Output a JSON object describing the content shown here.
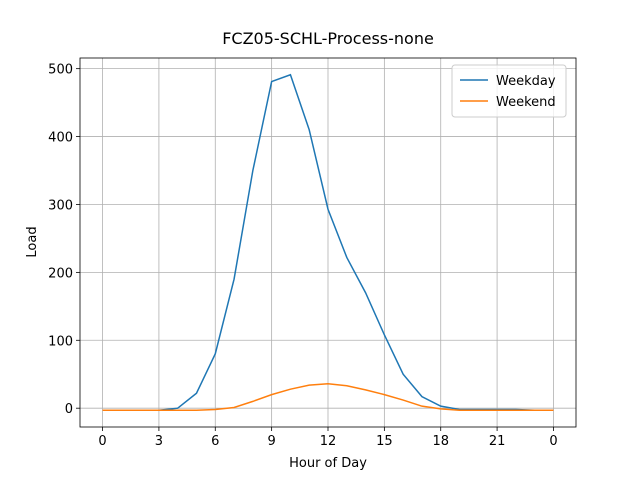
{
  "chart_data": {
    "type": "line",
    "title": "FCZ05-SCHL-Process-none",
    "x_label": "Hour of Day",
    "y_label": "Load",
    "x": [
      0,
      1,
      2,
      3,
      4,
      5,
      6,
      7,
      8,
      9,
      10,
      11,
      12,
      13,
      14,
      15,
      16,
      17,
      18,
      19,
      20,
      21,
      22,
      23,
      24
    ],
    "series": [
      {
        "name": "Weekday",
        "color": "#1f77b4",
        "values": [
          -3,
          -3,
          -3,
          -3,
          0,
          22,
          80,
          190,
          350,
          481,
          491,
          410,
          293,
          222,
          170,
          108,
          50,
          17,
          3,
          -2,
          -2,
          -2,
          -2,
          -3,
          -3
        ]
      },
      {
        "name": "Weekend",
        "color": "#ff7f0e",
        "values": [
          -3,
          -3,
          -3,
          -3,
          -3,
          -3,
          -2,
          1,
          10,
          20,
          28,
          34,
          36,
          33,
          27,
          20,
          12,
          3,
          -1,
          -3,
          -3,
          -3,
          -3,
          -3,
          -3
        ]
      }
    ],
    "xlim": [
      -1.2,
      25.2
    ],
    "xticks": [
      0,
      3,
      6,
      9,
      12,
      15,
      18,
      21,
      {
        "value": 24,
        "label": "0"
      }
    ],
    "ylim": [
      -27.7,
      515.7
    ],
    "yticks": [
      0,
      100,
      200,
      300,
      400,
      500
    ],
    "grid": true,
    "legend": "upper right"
  }
}
